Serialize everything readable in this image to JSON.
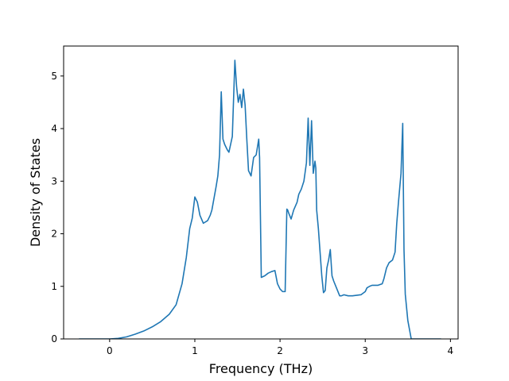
{
  "chart_data": {
    "type": "line",
    "title": "",
    "xlabel": "Frequency (THz)",
    "ylabel": "Density of States",
    "xlim": [
      -0.54,
      4.09
    ],
    "ylim": [
      0,
      5.57
    ],
    "xticks": [
      0,
      1,
      2,
      3,
      4
    ],
    "yticks": [
      0,
      1,
      2,
      3,
      4,
      5
    ],
    "grid": false,
    "line_color": "#1f77b4",
    "series": [
      {
        "x": [
          -0.36,
          -0.2,
          0,
          0.1,
          0.2,
          0.3,
          0.4,
          0.5,
          0.6,
          0.7,
          0.78,
          0.85,
          0.9,
          0.94,
          0.97,
          1.0,
          1.03,
          1.06,
          1.1,
          1.15,
          1.18,
          1.2,
          1.25,
          1.27,
          1.29,
          1.31,
          1.33,
          1.35,
          1.38,
          1.4,
          1.42,
          1.44,
          1.47,
          1.49,
          1.51,
          1.53,
          1.55,
          1.57,
          1.59,
          1.61,
          1.63,
          1.66,
          1.69,
          1.72,
          1.75,
          1.76,
          1.78,
          1.82,
          1.86,
          1.9,
          1.94,
          1.97,
          2.0,
          2.03,
          2.06,
          2.08,
          2.09,
          2.1,
          2.13,
          2.16,
          2.2,
          2.22,
          2.25,
          2.28,
          2.31,
          2.33,
          2.35,
          2.37,
          2.39,
          2.41,
          2.42,
          2.43,
          2.45,
          2.47,
          2.49,
          2.51,
          2.53,
          2.55,
          2.57,
          2.59,
          2.61,
          2.63,
          2.66,
          2.7,
          2.72,
          2.75,
          2.8,
          2.85,
          2.95,
          3.0,
          3.02,
          3.05,
          3.08,
          3.15,
          3.2,
          3.22,
          3.25,
          3.28,
          3.32,
          3.35,
          3.37,
          3.39,
          3.42,
          3.44,
          3.455,
          3.47,
          3.5,
          3.54,
          3.6,
          3.89
        ],
        "y": [
          0,
          0,
          0,
          0.01,
          0.04,
          0.09,
          0.15,
          0.23,
          0.33,
          0.47,
          0.65,
          1.05,
          1.55,
          2.1,
          2.3,
          2.7,
          2.6,
          2.35,
          2.2,
          2.25,
          2.35,
          2.45,
          2.9,
          3.1,
          3.5,
          4.7,
          3.8,
          3.7,
          3.6,
          3.55,
          3.7,
          3.85,
          5.3,
          4.8,
          4.5,
          4.65,
          4.4,
          4.75,
          4.45,
          3.8,
          3.2,
          3.1,
          3.45,
          3.5,
          3.8,
          3.45,
          1.17,
          1.2,
          1.25,
          1.28,
          1.3,
          1.05,
          0.95,
          0.9,
          0.9,
          2.47,
          2.45,
          2.4,
          2.28,
          2.45,
          2.6,
          2.75,
          2.85,
          3.0,
          3.35,
          4.2,
          3.3,
          4.15,
          3.15,
          3.38,
          3.25,
          2.45,
          2.1,
          1.65,
          1.2,
          0.88,
          0.92,
          1.35,
          1.5,
          1.7,
          1.2,
          1.1,
          0.98,
          0.82,
          0.82,
          0.84,
          0.82,
          0.82,
          0.84,
          0.9,
          0.97,
          1.0,
          1.02,
          1.02,
          1.05,
          1.15,
          1.35,
          1.45,
          1.5,
          1.65,
          2.2,
          2.6,
          3.15,
          4.1,
          1.7,
          0.85,
          0.35,
          0,
          0,
          0
        ]
      }
    ]
  }
}
